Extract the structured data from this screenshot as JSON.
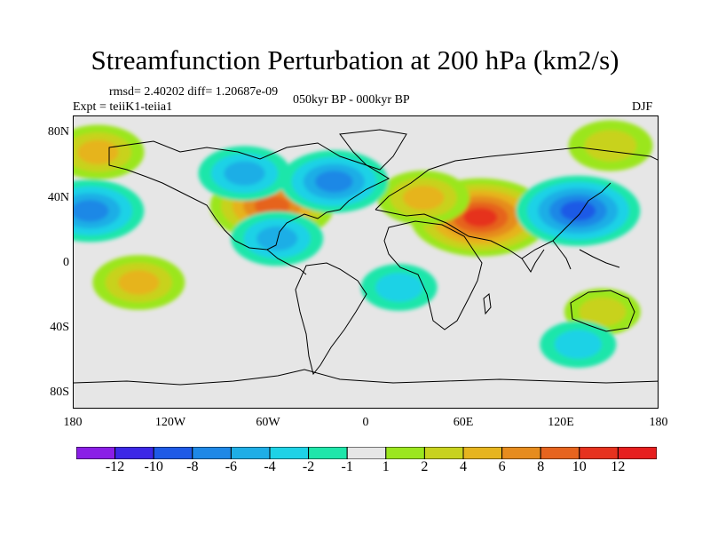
{
  "title": "Streamfunction Perturbation at 200 hPa (km2/s)",
  "stats": "rmsd= 2.40202 diff= 1.20687e-09",
  "experiment": "Expt = teiiK1-teiia1",
  "period": "050kyr BP - 000kyr BP",
  "season": "DJF",
  "axes": {
    "lat_ticks": [
      "80N",
      "40N",
      "0",
      "40S",
      "80S"
    ],
    "lon_ticks": [
      "180",
      "120W",
      "60W",
      "0",
      "60E",
      "120E",
      "180"
    ]
  },
  "colorbar": {
    "labels": [
      "-12",
      "-10",
      "-8",
      "-6",
      "-4",
      "-2",
      "-1",
      "1",
      "2",
      "4",
      "6",
      "8",
      "10",
      "12"
    ],
    "colors": [
      "#8a1ee6",
      "#3c28e6",
      "#1e5ae6",
      "#1e88e6",
      "#1eaee6",
      "#1ed2e6",
      "#1ee6aa",
      "#e6e6e6",
      "#9be61e",
      "#c8d21e",
      "#e6b41e",
      "#e68c1e",
      "#e6641e",
      "#e6321e",
      "#e61e1e"
    ]
  },
  "chart_data": {
    "type": "heatmap",
    "title": "Streamfunction Perturbation at 200 hPa (km2/s)",
    "xlim": [
      -180,
      180
    ],
    "ylim": [
      -90,
      90
    ],
    "anomalies": [
      {
        "lon": 70,
        "lat": 28,
        "value": 10,
        "sign": "positive"
      },
      {
        "lon": 35,
        "lat": 40,
        "value": 4,
        "sign": "positive"
      },
      {
        "lon": -58,
        "lat": 35,
        "value": 8,
        "sign": "positive"
      },
      {
        "lon": -165,
        "lat": 68,
        "value": 4,
        "sign": "positive"
      },
      {
        "lon": 150,
        "lat": 72,
        "value": 3,
        "sign": "positive"
      },
      {
        "lon": -140,
        "lat": -12,
        "value": 4,
        "sign": "positive"
      },
      {
        "lon": 145,
        "lat": -30,
        "value": 2,
        "sign": "positive"
      },
      {
        "lon": 130,
        "lat": 32,
        "value": -8,
        "sign": "negative"
      },
      {
        "lon": -170,
        "lat": 32,
        "value": -6,
        "sign": "negative"
      },
      {
        "lon": -75,
        "lat": 55,
        "value": -4,
        "sign": "negative"
      },
      {
        "lon": -20,
        "lat": 50,
        "value": -6,
        "sign": "negative"
      },
      {
        "lon": -55,
        "lat": 15,
        "value": -4,
        "sign": "negative"
      },
      {
        "lon": 20,
        "lat": -15,
        "value": -2,
        "sign": "negative"
      },
      {
        "lon": 130,
        "lat": -50,
        "value": -2,
        "sign": "negative"
      }
    ]
  }
}
